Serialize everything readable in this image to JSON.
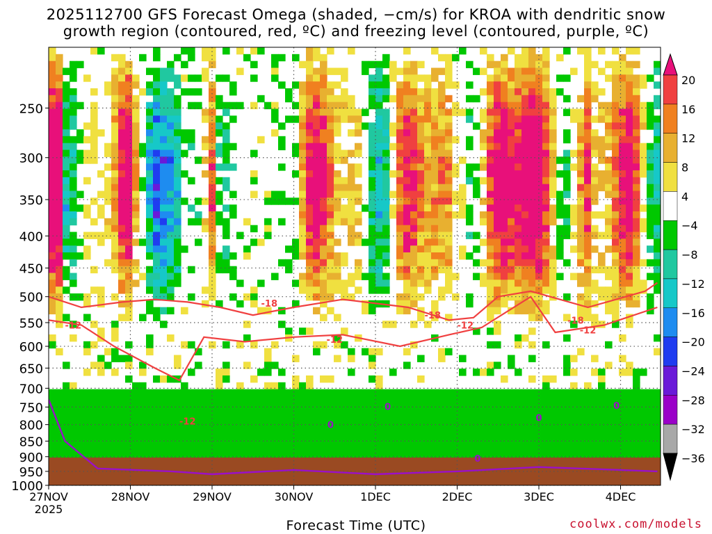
{
  "title_line1": "2025112700 GFS Forecast Omega (shaded, −cm/s) for KROA with dendritic snow",
  "title_line2": "growth region (contoured, red, ºC) and freezing level (contoured, purple, ºC)",
  "xlabel": "Forecast Time (UTC)",
  "credit": "coolwx.com/models",
  "chart_data": {
    "type": "heatmap",
    "title": "2025112700 GFS Forecast Omega (shaded, −cm/s) for KROA with dendritic snow growth region (contoured, red, ºC) and freezing level (contoured, purple, ºC)",
    "xlabel": "Forecast Time (UTC)",
    "ylabel": "",
    "x_ticks": [
      "27NOV\n2025",
      "28NOV",
      "29NOV",
      "30NOV",
      "1DEC",
      "2DEC",
      "3DEC",
      "4DEC"
    ],
    "y_ticks": [
      250,
      300,
      350,
      400,
      450,
      500,
      550,
      600,
      650,
      700,
      750,
      800,
      850,
      900,
      950,
      1000
    ],
    "y_range": [
      1000,
      200
    ],
    "y_scale": "log",
    "grid": true,
    "colorbar": {
      "levels": [
        -36,
        -32,
        -28,
        -24,
        -20,
        -16,
        -12,
        -8,
        -4,
        4,
        8,
        12,
        16,
        20
      ],
      "label_values": [
        20,
        16,
        12,
        8,
        4,
        -4,
        -8,
        -12,
        -16,
        -20,
        -24,
        -28,
        -32,
        -36
      ],
      "colors": [
        "#000000",
        "#a8a8a8",
        "#9a00c8",
        "#6a1ad8",
        "#1f3cf0",
        "#1e8cf0",
        "#16c8c8",
        "#20c8a0",
        "#00c800",
        "#ffffff",
        "#f0e040",
        "#e8b030",
        "#f08020",
        "#f04040",
        "#e8107a"
      ]
    },
    "contours": {
      "dgz": {
        "color": "#f04040",
        "labels": [
          "-18",
          "-12",
          "-12",
          "-18",
          "-12",
          "-18",
          "-12",
          "-12"
        ]
      },
      "freezing": {
        "color": "#9a10c8",
        "labels": [
          "0",
          "0",
          "0",
          "0",
          "0"
        ]
      }
    },
    "dgz_top_hPa": [
      {
        "x": 0.0,
        "p": 500
      },
      {
        "x": 0.4,
        "p": 520
      },
      {
        "x": 0.9,
        "p": 510
      },
      {
        "x": 1.3,
        "p": 505
      },
      {
        "x": 1.7,
        "p": 510
      },
      {
        "x": 2.1,
        "p": 520
      },
      {
        "x": 2.5,
        "p": 535
      },
      {
        "x": 3.0,
        "p": 520
      },
      {
        "x": 3.6,
        "p": 505
      },
      {
        "x": 4.4,
        "p": 520
      },
      {
        "x": 4.9,
        "p": 545
      },
      {
        "x": 5.2,
        "p": 540
      },
      {
        "x": 5.5,
        "p": 500
      },
      {
        "x": 5.9,
        "p": 490
      },
      {
        "x": 6.6,
        "p": 520
      },
      {
        "x": 7.3,
        "p": 490
      },
      {
        "x": 7.45,
        "p": 475
      }
    ],
    "dgz_bottom_hPa": [
      {
        "x": 0.0,
        "p": 545
      },
      {
        "x": 0.4,
        "p": 555
      },
      {
        "x": 0.8,
        "p": 600
      },
      {
        "x": 1.3,
        "p": 650
      },
      {
        "x": 1.6,
        "p": 680
      },
      {
        "x": 1.9,
        "p": 580
      },
      {
        "x": 2.4,
        "p": 590
      },
      {
        "x": 3.0,
        "p": 580
      },
      {
        "x": 3.6,
        "p": 575
      },
      {
        "x": 4.3,
        "p": 600
      },
      {
        "x": 4.9,
        "p": 575
      },
      {
        "x": 5.3,
        "p": 560
      },
      {
        "x": 5.9,
        "p": 500
      },
      {
        "x": 6.2,
        "p": 570
      },
      {
        "x": 6.8,
        "p": 555
      },
      {
        "x": 7.45,
        "p": 520
      }
    ],
    "freezing_level_hPa": [
      {
        "x": 0.0,
        "p": 730
      },
      {
        "x": 0.2,
        "p": 850
      },
      {
        "x": 0.6,
        "p": 940
      },
      {
        "x": 1.5,
        "p": 950
      },
      {
        "x": 2.0,
        "p": 960
      },
      {
        "x": 3.0,
        "p": 945
      },
      {
        "x": 4.0,
        "p": 960
      },
      {
        "x": 5.0,
        "p": 950
      },
      {
        "x": 6.0,
        "p": 935
      },
      {
        "x": 7.0,
        "p": 945
      },
      {
        "x": 7.45,
        "p": 950
      }
    ]
  }
}
